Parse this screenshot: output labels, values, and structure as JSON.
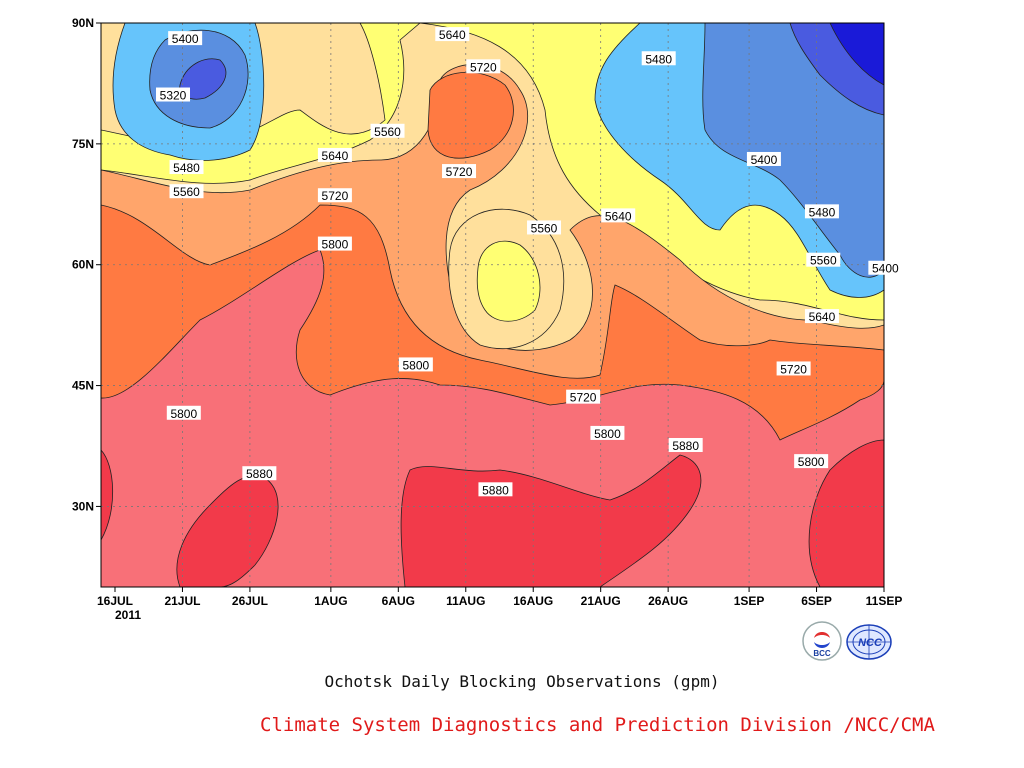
{
  "chart_data": {
    "type": "contour",
    "title": "Ochotsk Daily Blocking Observations (gpm)",
    "credit": "Climate System Diagnostics and Prediction Division /NCC/CMA",
    "x_ticks": [
      {
        "label": "16JUL",
        "day": 0
      },
      {
        "label": "21JUL",
        "day": 5
      },
      {
        "label": "26JUL",
        "day": 10
      },
      {
        "label": "1AUG",
        "day": 16
      },
      {
        "label": "6AUG",
        "day": 21
      },
      {
        "label": "11AUG",
        "day": 26
      },
      {
        "label": "16AUG",
        "day": 31
      },
      {
        "label": "21AUG",
        "day": 36
      },
      {
        "label": "26AUG",
        "day": 41
      },
      {
        "label": "1SEP",
        "day": 47
      },
      {
        "label": "6SEP",
        "day": 52
      },
      {
        "label": "11SEP",
        "day": 57
      }
    ],
    "x_year_label": "2011",
    "y_ticks": [
      {
        "label": "30N",
        "lat": 30
      },
      {
        "label": "45N",
        "lat": 45
      },
      {
        "label": "60N",
        "lat": 60
      },
      {
        "label": "75N",
        "lat": 75
      },
      {
        "label": "90N",
        "lat": 90
      }
    ],
    "ylim": [
      20,
      90
    ],
    "contour_levels": [
      5320,
      5400,
      5480,
      5560,
      5640,
      5720,
      5800,
      5880
    ],
    "level_colors": {
      "5320": "#4a5be0",
      "5400": "#5a8fe0",
      "5480": "#66c4fb",
      "5560": "#ffff73",
      "5640": "#ffe09c",
      "5720": "#ffa56b",
      "5800": "#ff7a42",
      "5880": "#f87078",
      "above": "#f23a4a",
      "below": "#1a1ad8"
    },
    "contour_labels": [
      {
        "value": "5400",
        "day": 5.2,
        "lat": 88
      },
      {
        "value": "5320",
        "day": 4.3,
        "lat": 81
      },
      {
        "value": "5480",
        "day": 5.3,
        "lat": 72
      },
      {
        "value": "5560",
        "day": 5.3,
        "lat": 69
      },
      {
        "value": "5640",
        "day": 25,
        "lat": 88.5
      },
      {
        "value": "5720",
        "day": 27.3,
        "lat": 84.5
      },
      {
        "value": "5480",
        "day": 40.3,
        "lat": 85.5
      },
      {
        "value": "5560",
        "day": 20.2,
        "lat": 76.5
      },
      {
        "value": "5640",
        "day": 16.3,
        "lat": 73.5
      },
      {
        "value": "5720",
        "day": 16.3,
        "lat": 68.5
      },
      {
        "value": "5720",
        "day": 25.5,
        "lat": 71.5
      },
      {
        "value": "5400",
        "day": 48.1,
        "lat": 73
      },
      {
        "value": "5800",
        "day": 16.3,
        "lat": 62.5
      },
      {
        "value": "5560",
        "day": 31.8,
        "lat": 64.5
      },
      {
        "value": "5640",
        "day": 37.3,
        "lat": 66
      },
      {
        "value": "5480",
        "day": 52.4,
        "lat": 66.5
      },
      {
        "value": "5560",
        "day": 52.5,
        "lat": 60.5
      },
      {
        "value": "5400",
        "day": 57.1,
        "lat": 59.5
      },
      {
        "value": "5640",
        "day": 52.4,
        "lat": 53.5
      },
      {
        "value": "5800",
        "day": 22.3,
        "lat": 47.5
      },
      {
        "value": "5720",
        "day": 34.7,
        "lat": 43.5
      },
      {
        "value": "5720",
        "day": 50.3,
        "lat": 47
      },
      {
        "value": "5800",
        "day": 5.1,
        "lat": 41.5
      },
      {
        "value": "5800",
        "day": 36.5,
        "lat": 39
      },
      {
        "value": "5880",
        "day": 42.3,
        "lat": 37.5
      },
      {
        "value": "5800",
        "day": 51.6,
        "lat": 35.5
      },
      {
        "value": "5880",
        "day": 10.7,
        "lat": 34
      },
      {
        "value": "5880",
        "day": 28.2,
        "lat": 32
      }
    ]
  },
  "logos": {
    "bcc_text": "BCC",
    "ncc_text": "NCC"
  }
}
